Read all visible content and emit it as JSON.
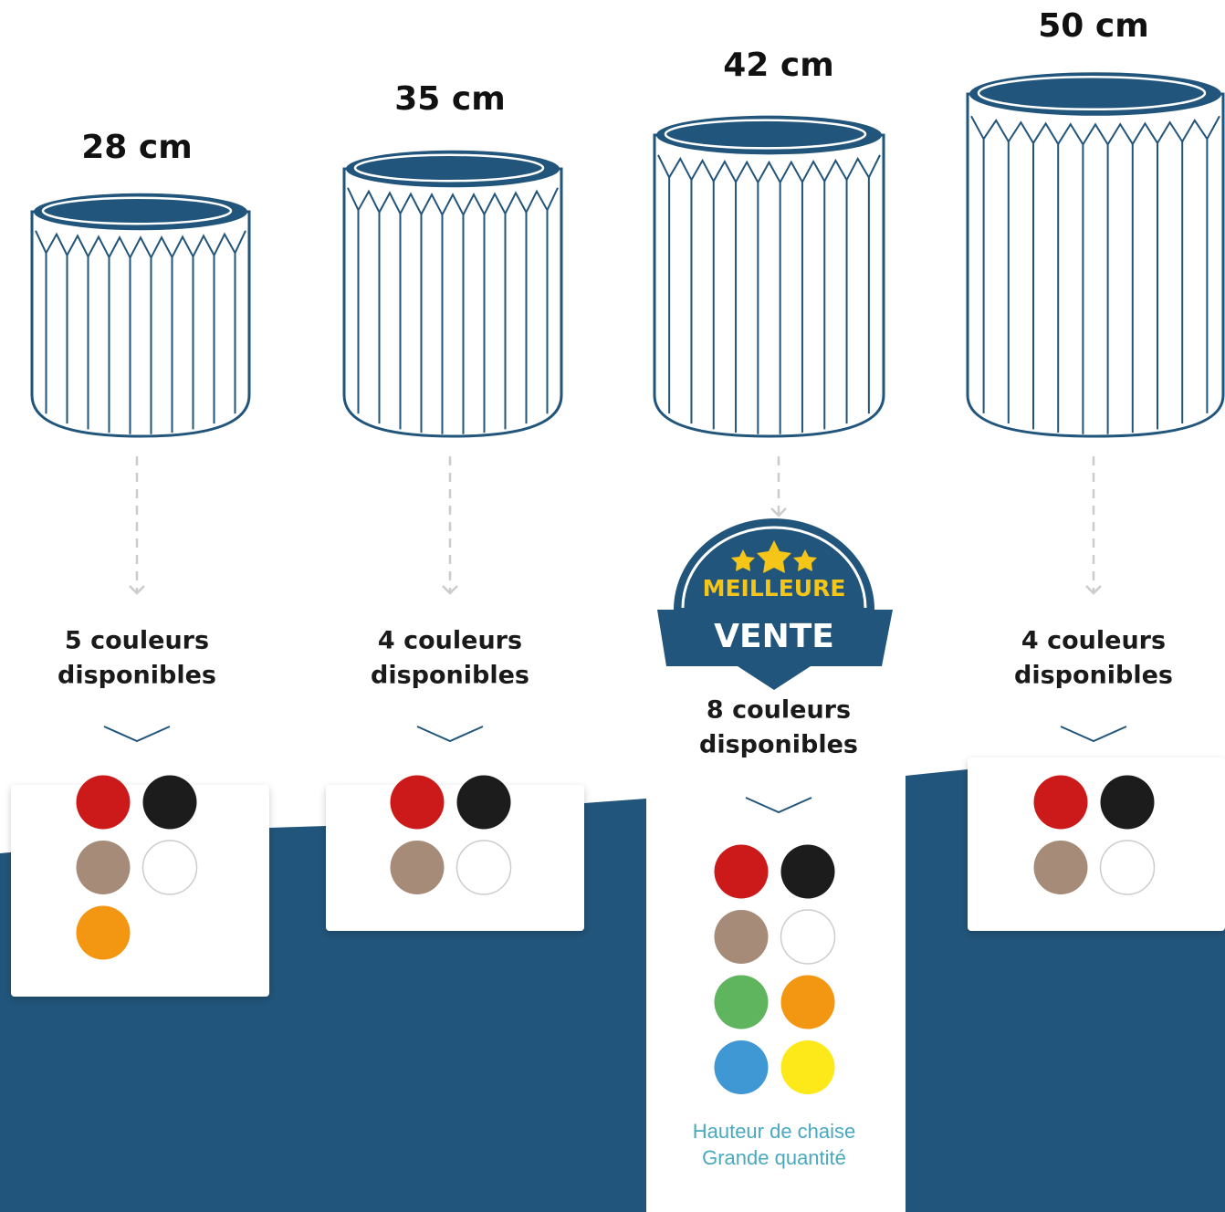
{
  "products": [
    {
      "size": "28 cm",
      "colors_label": [
        "5 couleurs",
        "disponibles"
      ],
      "swatches": [
        "#cc1a1a",
        "#1c1c1c",
        "#a68b78",
        "#ffffff",
        "#f39612"
      ]
    },
    {
      "size": "35 cm",
      "colors_label": [
        "4 couleurs",
        "disponibles"
      ],
      "swatches": [
        "#cc1a1a",
        "#1c1c1c",
        "#a68b78",
        "#ffffff"
      ]
    },
    {
      "size": "42 cm",
      "colors_label": [
        "8 couleurs",
        "disponibles"
      ],
      "swatches": [
        "#cc1a1a",
        "#1c1c1c",
        "#a68b78",
        "#ffffff",
        "#5fb55e",
        "#f39612",
        "#3f97d4",
        "#fde81a"
      ]
    },
    {
      "size": "50 cm",
      "colors_label": [
        "4 couleurs",
        "disponibles"
      ],
      "swatches": [
        "#cc1a1a",
        "#1c1c1c",
        "#a68b78",
        "#ffffff"
      ]
    }
  ],
  "badge": {
    "line1": "MEILLEURE",
    "line2": "VENTE"
  },
  "note": [
    "Hauteur de chaise",
    "Grande quantité"
  ]
}
